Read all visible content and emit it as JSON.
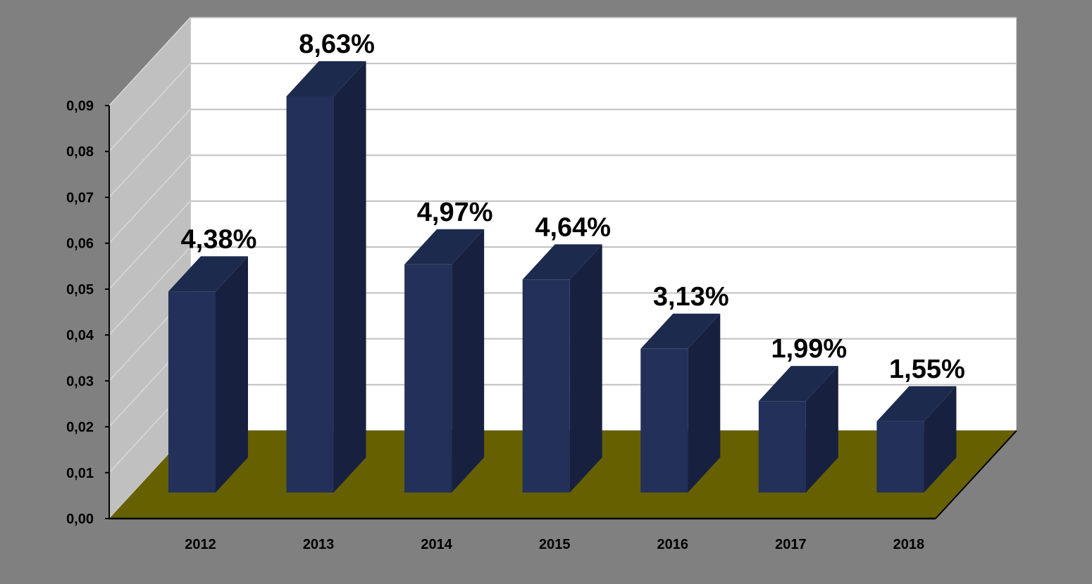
{
  "chart_data": {
    "type": "bar",
    "title": "",
    "xlabel": "",
    "ylabel": "",
    "categories": [
      "2012",
      "2013",
      "2014",
      "2015",
      "2016",
      "2017",
      "2018"
    ],
    "values": [
      0.0438,
      0.0863,
      0.0497,
      0.0464,
      0.0313,
      0.0199,
      0.0155
    ],
    "data_labels": [
      "4,38%",
      "8,63%",
      "4,97%",
      "4,64%",
      "3,13%",
      "1,99%",
      "1,55%"
    ],
    "ylim": [
      0,
      0.09
    ],
    "yticks": [
      0,
      0.01,
      0.02,
      0.03,
      0.04,
      0.05,
      0.06,
      0.07,
      0.08,
      0.09
    ],
    "ytick_labels": [
      "0,00",
      "0,01",
      "0,02",
      "0,03",
      "0,04",
      "0,05",
      "0,06",
      "0,07",
      "0,08",
      "0,09"
    ],
    "grid": true,
    "legend": "none",
    "three_d": true
  },
  "colors": {
    "background": "#808080",
    "back_wall": "#ffffff",
    "side_wall": "#c0c0c0",
    "floor": "#666000",
    "bar_front": "#22305a",
    "bar_side": "#18203f",
    "bar_top": "#1c2a4d",
    "gridline": "#c0c0c0"
  }
}
